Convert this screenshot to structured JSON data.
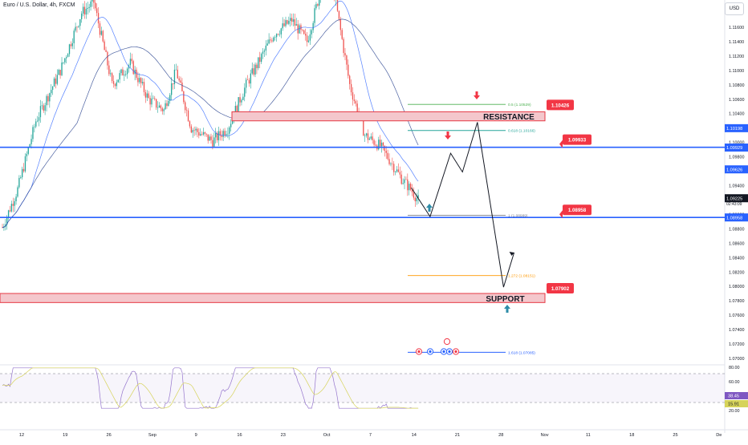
{
  "header": {
    "symbol": "Euro / U.S. Dollar, 4h, FXCM",
    "currency_button": "USD"
  },
  "colors": {
    "up_candle": "#26a69a",
    "down_candle": "#ef5350",
    "level_line": "#2962ff",
    "zone_fill": "#f4c7cc",
    "zone_border": "#e53945",
    "badge_red": "#f23645",
    "arrow_red": "#f23645",
    "arrow_teal": "#2e8ca8",
    "rsi_line": "#9575cd",
    "rsi_ma": "#d6d35a",
    "fib_green": "#4caf50",
    "fib_teal": "#26a69a",
    "fib_grey": "#787b86",
    "fib_orange": "#ff9800",
    "fib_blue": "#2962ff"
  },
  "chart_data": {
    "type": "candlestick",
    "title": "Euro / U.S. Dollar, 4h, FXCM",
    "y_axis": {
      "ticks": [
        "1.11600",
        "1.11400",
        "1.11200",
        "1.11000",
        "1.10800",
        "1.10600",
        "1.10400",
        "1.10200",
        "1.10000",
        "1.09800",
        "1.09600",
        "1.09400",
        "1.09200",
        "1.09000",
        "1.08800",
        "1.08600",
        "1.08400",
        "1.08200",
        "1.08000",
        "1.07800",
        "1.07600",
        "1.07400",
        "1.07200",
        "1.07000"
      ],
      "range": [
        1.0693,
        1.1192
      ]
    },
    "x_axis": {
      "ticks": [
        "12",
        "19",
        "26",
        "Sep",
        "9",
        "16",
        "23",
        "Oct",
        "7",
        "14",
        "21",
        "28",
        "Nov",
        "11",
        "18",
        "25",
        "De"
      ]
    },
    "price_labels": [
      {
        "text": "1.10198",
        "value": 1.10198,
        "color": "#2962ff"
      },
      {
        "text": "1.09929",
        "value": 1.09929,
        "color": "#2962ff"
      },
      {
        "text": "1.09626",
        "value": 1.09626,
        "color": "#2962ff"
      },
      {
        "text": "1.09225",
        "value": 1.09225,
        "color": "#131722"
      },
      {
        "text": "1.08958",
        "value": 1.08958,
        "color": "#2962ff"
      }
    ],
    "countdown": "02:43:09",
    "horizontal_levels": [
      {
        "value": 1.09933,
        "badge": "1.09933"
      },
      {
        "value": 1.08958,
        "badge": "1.08958"
      }
    ],
    "zones": [
      {
        "label": "RESISTANCE",
        "badge": "1.10426",
        "top": 1.10426,
        "bottom": 1.103
      },
      {
        "label": "SUPPORT",
        "badge": "1.07902",
        "top": 1.07902,
        "bottom": 1.07776
      }
    ],
    "fibonacci": [
      {
        "label": "0.5 (1.10529)",
        "value": 1.10529
      },
      {
        "label": "0.618 (1.10166)",
        "value": 1.10166
      },
      {
        "label": "1 (1.08989)",
        "value": 1.08989
      },
      {
        "label": "1.272 (1.08151)",
        "value": 1.08151
      },
      {
        "label": "1.618 (1.07085)",
        "value": 1.07085
      }
    ],
    "projection_path": [
      [
        1.0937,
        13.6
      ],
      [
        1.0897,
        16.6
      ],
      [
        1.0985,
        19.9
      ],
      [
        1.0959,
        21.8
      ],
      [
        1.1028,
        24.2
      ],
      [
        1.0799,
        28.4
      ],
      [
        1.0847,
        30.1
      ]
    ],
    "rsi": {
      "ticks": [
        "80.00",
        "60.00",
        "38.45",
        "15.91",
        "20.00"
      ],
      "values": [
        38.45,
        15.91
      ]
    }
  }
}
